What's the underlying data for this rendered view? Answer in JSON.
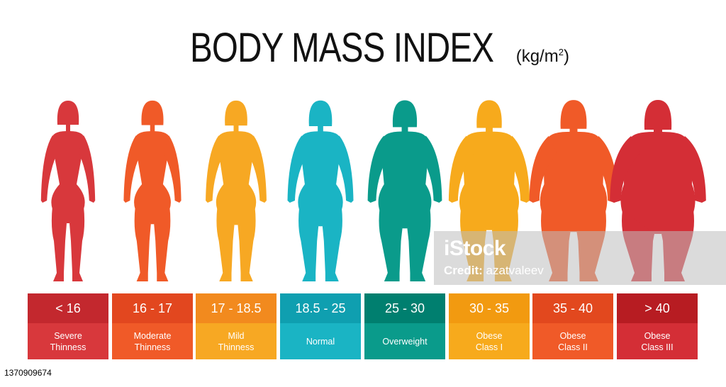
{
  "title": "BODY MASS INDEX",
  "unit": {
    "base": "(kg/m",
    "exponent": "2",
    "close": ")"
  },
  "categories": [
    {
      "range": "< 16",
      "label_line1": "Severe",
      "label_line2": "Thinness",
      "top_color": "#c3282e",
      "bottom_color": "#d8383c",
      "figure_color": "#d8383c",
      "figure_build": 0.0
    },
    {
      "range": "16 - 17",
      "label_line1": "Moderate",
      "label_line2": "Thinness",
      "top_color": "#e2471f",
      "bottom_color": "#f05a28",
      "figure_color": "#f05a28",
      "figure_build": 0.08
    },
    {
      "range": "17 - 18.5",
      "label_line1": "Mild",
      "label_line2": "Thinness",
      "top_color": "#f28a1e",
      "bottom_color": "#f7a823",
      "figure_color": "#f7a823",
      "figure_build": 0.16
    },
    {
      "range": "18.5 - 25",
      "label_line1": "Normal",
      "label_line2": "",
      "top_color": "#0f9fb0",
      "bottom_color": "#1ab4c4",
      "figure_color": "#1ab4c4",
      "figure_build": 0.28
    },
    {
      "range": "25 - 30",
      "label_line1": "Overweight",
      "label_line2": "",
      "top_color": "#007f6f",
      "bottom_color": "#0a9b8b",
      "figure_color": "#0a9b8b",
      "figure_build": 0.48
    },
    {
      "range": "30 - 35",
      "label_line1": "Obese",
      "label_line2": "Class I",
      "top_color": "#f29a10",
      "bottom_color": "#f7aa1c",
      "figure_color": "#f7aa1c",
      "figure_build": 0.64
    },
    {
      "range": "35 - 40",
      "label_line1": "Obese",
      "label_line2": "Class II",
      "top_color": "#e2481e",
      "bottom_color": "#f05a28",
      "figure_color": "#f05a28",
      "figure_build": 0.82
    },
    {
      "range": "> 40",
      "label_line1": "Obese",
      "label_line2": "Class III",
      "top_color": "#b71c22",
      "bottom_color": "#d42e36",
      "figure_color": "#d42e36",
      "figure_build": 1.0
    }
  ],
  "watermark": {
    "logo": "iStock",
    "credit_label": "Credit:",
    "credit_name": "azatvaleev"
  },
  "stock_id": "1370909674"
}
